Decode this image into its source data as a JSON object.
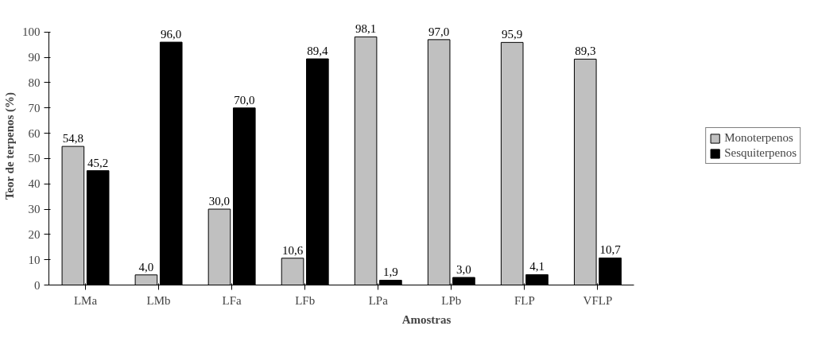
{
  "chart_data": {
    "type": "bar",
    "xlabel": "Amostras",
    "ylabel": "Teor de terpenos (%)",
    "categories": [
      "LMa",
      "LMb",
      "LFa",
      "LFb",
      "LPa",
      "LPb",
      "FLP",
      "VFLP"
    ],
    "series": [
      {
        "name": "Monoterpenos",
        "color": "#c0c0c0",
        "values": [
          54.8,
          4.0,
          30.0,
          10.6,
          98.1,
          97.0,
          95.9,
          89.3
        ],
        "value_labels": [
          "54,8",
          "4,0",
          "30,0",
          "10,6",
          "98,1",
          "97,0",
          "95,9",
          "89,3"
        ]
      },
      {
        "name": "Sesquiterpenos",
        "color": "#000000",
        "values": [
          45.2,
          96.0,
          70.0,
          89.4,
          1.9,
          3.0,
          4.1,
          10.7
        ],
        "value_labels": [
          "45,2",
          "96,0",
          "70,0",
          "89,4",
          "1,9",
          "3,0",
          "4,1",
          "10,7"
        ]
      }
    ],
    "ylim": [
      0,
      100
    ],
    "yticks": [
      0,
      10,
      20,
      30,
      40,
      50,
      60,
      70,
      80,
      90,
      100
    ],
    "grid": false,
    "legend": "right"
  }
}
